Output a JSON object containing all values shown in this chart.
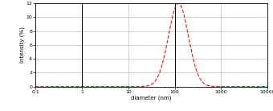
{
  "title": "",
  "xlabel": "diameter (nm)",
  "ylabel": "Intensity (%)",
  "xlim": [
    0.1,
    10000
  ],
  "ylim": [
    0,
    12
  ],
  "yticks": [
    0,
    2,
    4,
    6,
    8,
    10,
    12
  ],
  "xticks": [
    0.1,
    1,
    10,
    100,
    1000,
    10000
  ],
  "xtick_labels": [
    "0.1",
    "1",
    "10",
    "100",
    "1000",
    "10000"
  ],
  "curve_color": "#dd2222",
  "curve_peak_x_log": 2.08,
  "curve_sigma_log": 0.215,
  "curve_peak_y": 12.0,
  "bg_color": "#ffffff",
  "grid_color": "#999999",
  "vline_color": "#000000",
  "font_size_axis": 5.0,
  "font_size_tick": 4.5,
  "line_width": 0.85
}
